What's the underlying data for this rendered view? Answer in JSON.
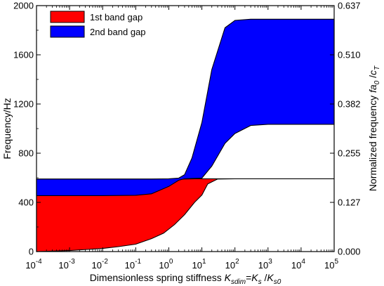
{
  "chart_data": {
    "type": "area",
    "x_scale": "log",
    "xlim": [
      0.0001,
      100000
    ],
    "ylim": [
      0,
      2000
    ],
    "right_ylim": [
      0,
      0.637
    ],
    "x_ticks": [
      {
        "v": 0.0001,
        "b": "10",
        "e": "-4"
      },
      {
        "v": 0.001,
        "b": "10",
        "e": "-3"
      },
      {
        "v": 0.01,
        "b": "10",
        "e": "-2"
      },
      {
        "v": 0.1,
        "b": "10",
        "e": "-1"
      },
      {
        "v": 1,
        "b": "10",
        "e": "0"
      },
      {
        "v": 10,
        "b": "10",
        "e": "1"
      },
      {
        "v": 100,
        "b": "10",
        "e": "2"
      },
      {
        "v": 1000,
        "b": "10",
        "e": "3"
      },
      {
        "v": 10000,
        "b": "10",
        "e": "4"
      },
      {
        "v": 100000,
        "b": "10",
        "e": "5"
      }
    ],
    "y_ticks": [
      {
        "v": 0,
        "label": "0"
      },
      {
        "v": 400,
        "label": "400"
      },
      {
        "v": 800,
        "label": "800"
      },
      {
        "v": 1200,
        "label": "1200"
      },
      {
        "v": 1600,
        "label": "1600"
      },
      {
        "v": 2000,
        "label": "2000"
      }
    ],
    "right_y_ticks": [
      {
        "v": 0,
        "label": "0.000"
      },
      {
        "v": 400,
        "label": "0.127"
      },
      {
        "v": 800,
        "label": "0.255"
      },
      {
        "v": 1200,
        "label": "0.382"
      },
      {
        "v": 1600,
        "label": "0.510"
      },
      {
        "v": 2000,
        "label": "0.637"
      }
    ],
    "ylabel": "Frequency/Hz",
    "xlabel": {
      "prefix": "Dimensionless spring stiffness ",
      "K1": "K",
      "sub1": "sdim",
      "eq1": "=",
      "K2": "K",
      "sub2": "s",
      "slash": " /",
      "K3": "K",
      "sub3": "s0"
    },
    "right_ylabel": {
      "prefix": "Normalized frequency ",
      "f": "fa",
      "sub": "0",
      "slash": " /",
      "c": "c",
      "csub": "T"
    },
    "legend_placement": "top-left",
    "series": [
      {
        "name": "1st band gap",
        "color": "#ff0000",
        "x": [
          0.0001,
          0.001,
          0.01,
          0.03,
          0.1,
          0.3,
          0.7,
          1.5,
          3,
          6,
          10,
          15,
          30,
          100,
          1000,
          10000,
          100000
        ],
        "lower": [
          0,
          8,
          25,
          40,
          60,
          105,
          150,
          220,
          300,
          400,
          460,
          550,
          590,
          592,
          592,
          592,
          592
        ],
        "upper": [
          590,
          590,
          590,
          590,
          590,
          590,
          590,
          590,
          590,
          592,
          592,
          592,
          592,
          592,
          592,
          592,
          592
        ]
      },
      {
        "name": "2nd band gap",
        "color": "#0000ff",
        "x": [
          0.0001,
          0.001,
          0.01,
          0.1,
          0.3,
          1,
          2,
          3,
          5,
          10,
          20,
          50,
          100,
          300,
          1000,
          10000,
          100000
        ],
        "lower": [
          455,
          455,
          455,
          458,
          470,
          530,
          580,
          592,
          595,
          598,
          695,
          880,
          960,
          1025,
          1035,
          1035,
          1035
        ],
        "upper": [
          590,
          590,
          590,
          590,
          590,
          592,
          598,
          625,
          760,
          1050,
          1480,
          1820,
          1880,
          1890,
          1890,
          1890,
          1890
        ]
      }
    ]
  }
}
